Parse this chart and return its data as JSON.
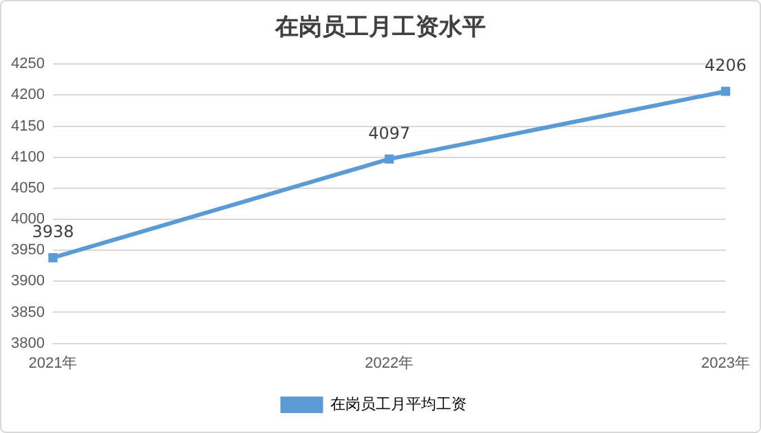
{
  "chart_data": {
    "type": "line",
    "title": "在岗员工月工资水平",
    "categories": [
      "2021年",
      "2022年",
      "2023年"
    ],
    "series": [
      {
        "name": "在岗员工月平均工资",
        "color": "#5b9bd5",
        "values": [
          3938,
          4097,
          4206
        ]
      }
    ],
    "ylim": [
      3800,
      4250
    ],
    "yticks": [
      3800,
      3850,
      3900,
      3950,
      4000,
      4050,
      4100,
      4150,
      4200,
      4250
    ],
    "grid": "y",
    "legend": "bottom",
    "marker": "square",
    "line_style": "solid",
    "data_labels": true
  }
}
